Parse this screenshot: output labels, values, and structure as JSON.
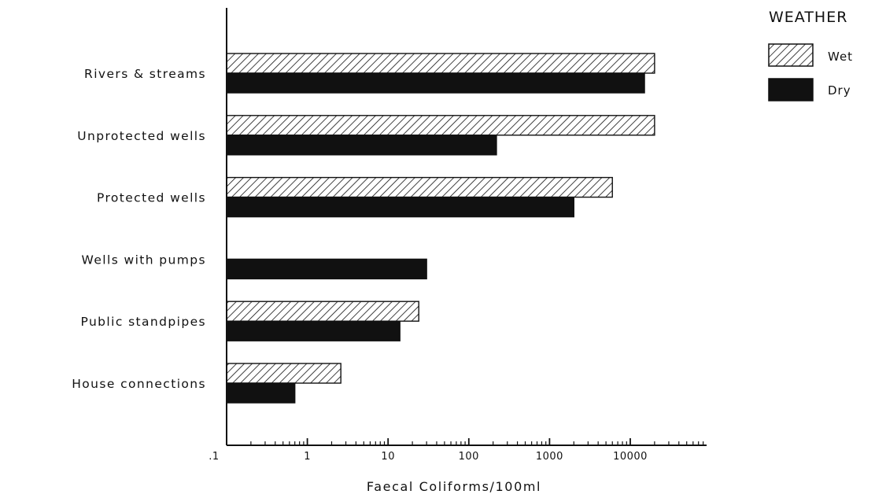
{
  "chart_data": {
    "type": "bar",
    "orientation": "horizontal",
    "xscale": "log",
    "xlim": [
      0.1,
      100000
    ],
    "xlabel": "Faecal Coliforms/100ml",
    "x_tick_labels": [
      ".1",
      "1",
      "10",
      "100",
      "1000",
      "10000"
    ],
    "categories": [
      "Rivers & streams",
      "Unprotected wells",
      "Protected wells",
      "Wells with pumps",
      "Public standpipes",
      "House connections"
    ],
    "legend_title": "WEATHER",
    "legend_position": "top-right",
    "grid": false,
    "series": [
      {
        "name": "Wet",
        "pattern": "hatched",
        "values": [
          20000,
          20000,
          6000,
          null,
          24,
          2.6
        ]
      },
      {
        "name": "Dry",
        "pattern": "solid",
        "values": [
          15000,
          220,
          2000,
          30,
          14,
          0.7
        ]
      }
    ],
    "colors": {
      "ink": "#111111",
      "background": "#ffffff"
    }
  }
}
